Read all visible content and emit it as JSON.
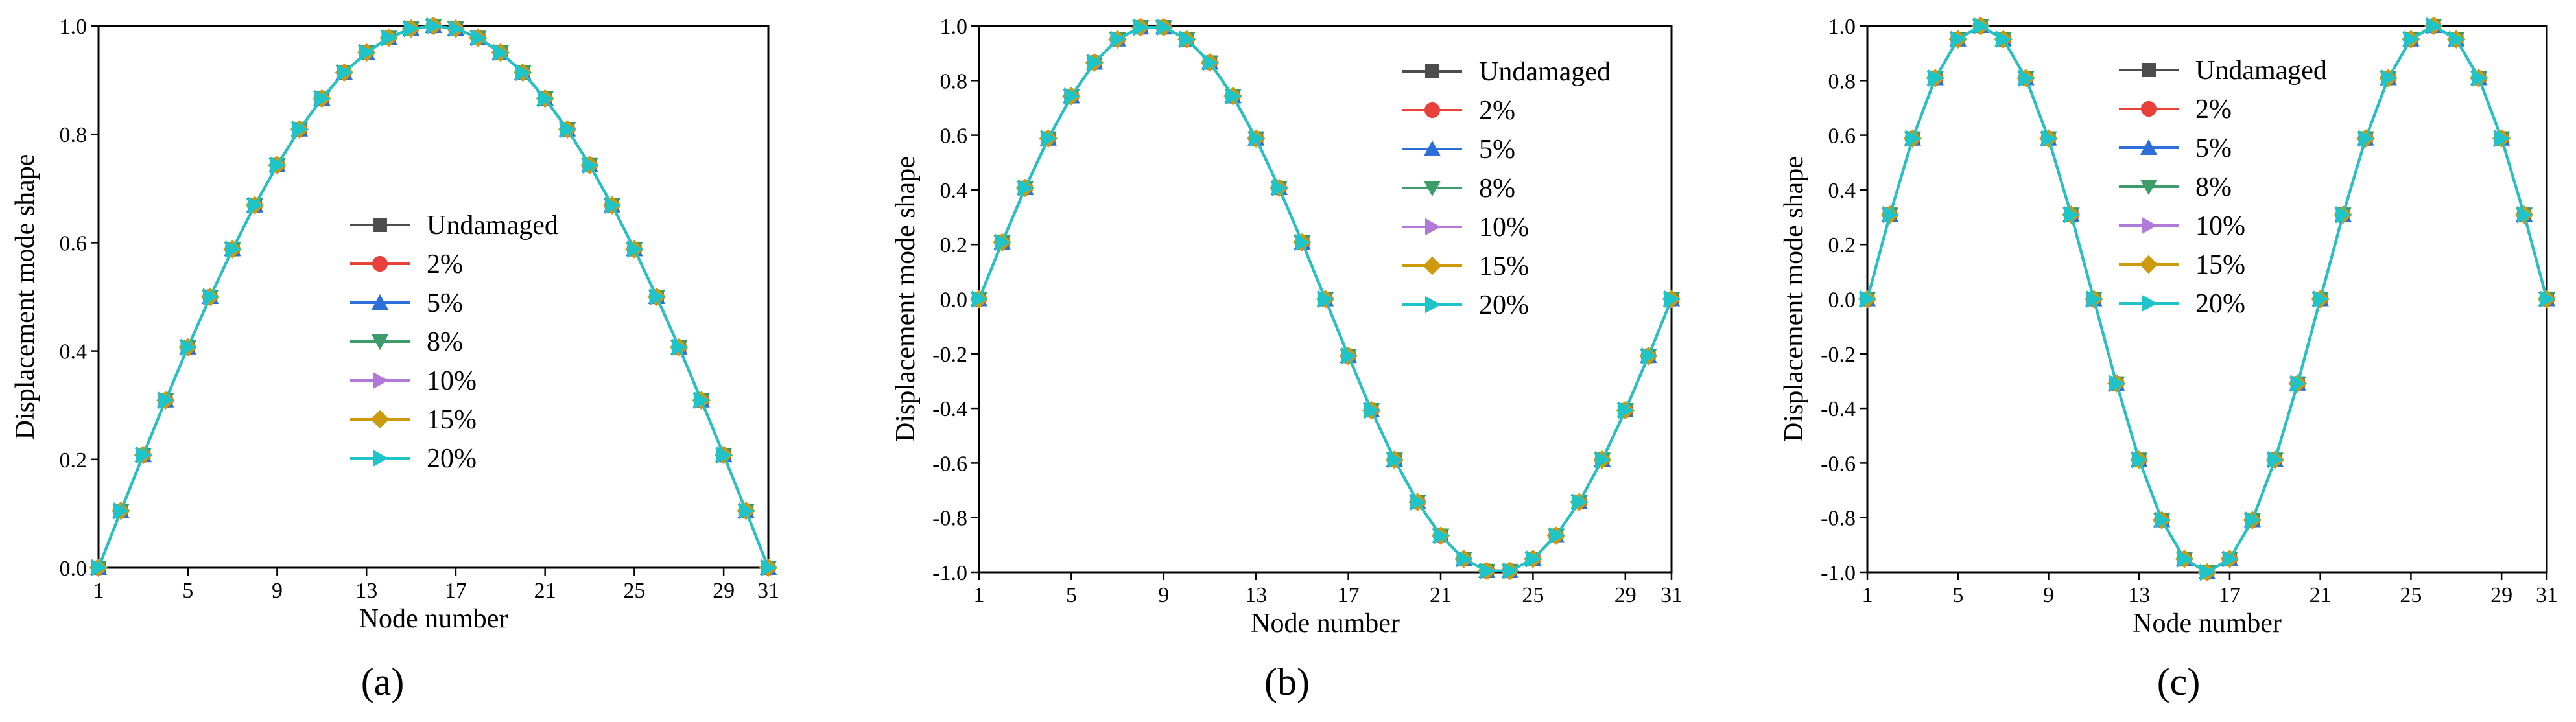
{
  "chart_data": [
    {
      "type": "line",
      "panel_label": "(a)",
      "xlabel": "Node number",
      "ylabel": "Displacement mode shape",
      "xlim": [
        1,
        31
      ],
      "ylim": [
        0.0,
        1.0
      ],
      "xticks": [
        1,
        5,
        9,
        13,
        17,
        21,
        25,
        29,
        31
      ],
      "yticks": [
        0.0,
        0.2,
        0.4,
        0.6,
        0.8,
        1.0
      ],
      "ytick_labels": [
        "0.0",
        "0.2",
        "0.4",
        "0.6",
        "0.8",
        "1.0"
      ],
      "legend_position": "center",
      "mode": 1,
      "x": [
        1,
        2,
        3,
        4,
        5,
        6,
        7,
        8,
        9,
        10,
        11,
        12,
        13,
        14,
        15,
        16,
        17,
        18,
        19,
        20,
        21,
        22,
        23,
        24,
        25,
        26,
        27,
        28,
        29,
        30,
        31
      ],
      "series": [
        {
          "name": "Undamaged",
          "values": [
            0,
            0.105,
            0.208,
            0.309,
            0.407,
            0.5,
            0.588,
            0.669,
            0.743,
            0.809,
            0.866,
            0.914,
            0.951,
            0.978,
            0.995,
            1.0,
            0.995,
            0.978,
            0.951,
            0.914,
            0.866,
            0.809,
            0.743,
            0.669,
            0.588,
            0.5,
            0.407,
            0.309,
            0.208,
            0.105,
            0
          ]
        },
        {
          "name": "2%",
          "values": [
            0,
            0.105,
            0.208,
            0.309,
            0.407,
            0.5,
            0.588,
            0.669,
            0.743,
            0.809,
            0.866,
            0.914,
            0.951,
            0.978,
            0.995,
            1.0,
            0.995,
            0.978,
            0.951,
            0.914,
            0.866,
            0.809,
            0.743,
            0.669,
            0.588,
            0.5,
            0.407,
            0.309,
            0.208,
            0.105,
            0
          ]
        },
        {
          "name": "5%",
          "values": [
            0,
            0.105,
            0.208,
            0.309,
            0.407,
            0.5,
            0.588,
            0.669,
            0.743,
            0.809,
            0.866,
            0.914,
            0.951,
            0.978,
            0.995,
            1.0,
            0.995,
            0.978,
            0.951,
            0.914,
            0.866,
            0.809,
            0.743,
            0.669,
            0.588,
            0.5,
            0.407,
            0.309,
            0.208,
            0.105,
            0
          ]
        },
        {
          "name": "8%",
          "values": [
            0,
            0.105,
            0.208,
            0.309,
            0.407,
            0.5,
            0.588,
            0.669,
            0.743,
            0.809,
            0.866,
            0.914,
            0.951,
            0.978,
            0.995,
            1.0,
            0.995,
            0.978,
            0.951,
            0.914,
            0.866,
            0.809,
            0.743,
            0.669,
            0.588,
            0.5,
            0.407,
            0.309,
            0.208,
            0.105,
            0
          ]
        },
        {
          "name": "10%",
          "values": [
            0,
            0.105,
            0.208,
            0.309,
            0.407,
            0.5,
            0.588,
            0.669,
            0.743,
            0.809,
            0.866,
            0.914,
            0.951,
            0.978,
            0.995,
            1.0,
            0.995,
            0.978,
            0.951,
            0.914,
            0.866,
            0.809,
            0.743,
            0.669,
            0.588,
            0.5,
            0.407,
            0.309,
            0.208,
            0.105,
            0
          ]
        },
        {
          "name": "15%",
          "values": [
            0,
            0.105,
            0.208,
            0.309,
            0.407,
            0.5,
            0.588,
            0.669,
            0.743,
            0.809,
            0.866,
            0.914,
            0.951,
            0.978,
            0.995,
            1.0,
            0.995,
            0.978,
            0.951,
            0.914,
            0.866,
            0.809,
            0.743,
            0.669,
            0.588,
            0.5,
            0.407,
            0.309,
            0.208,
            0.105,
            0
          ]
        },
        {
          "name": "20%",
          "values": [
            0,
            0.105,
            0.208,
            0.309,
            0.407,
            0.5,
            0.588,
            0.669,
            0.743,
            0.809,
            0.866,
            0.914,
            0.951,
            0.978,
            0.995,
            1.0,
            0.995,
            0.978,
            0.951,
            0.914,
            0.866,
            0.809,
            0.743,
            0.669,
            0.588,
            0.5,
            0.407,
            0.309,
            0.208,
            0.105,
            0
          ]
        }
      ]
    },
    {
      "type": "line",
      "panel_label": "(b)",
      "xlabel": "Node number",
      "ylabel": "Displacement mode shape",
      "xlim": [
        1,
        31
      ],
      "ylim": [
        -1.0,
        1.0
      ],
      "xticks": [
        1,
        5,
        9,
        13,
        17,
        21,
        25,
        29,
        31
      ],
      "yticks": [
        -1.0,
        -0.8,
        -0.6,
        -0.4,
        -0.2,
        0.0,
        0.2,
        0.4,
        0.6,
        0.8,
        1.0
      ],
      "ytick_labels": [
        "-1.0",
        "-0.8",
        "-0.6",
        "-0.4",
        "-0.2",
        "0.0",
        "0.2",
        "0.4",
        "0.6",
        "0.8",
        "1.0"
      ],
      "legend_position": "top-right",
      "mode": 2,
      "x": [
        1,
        2,
        3,
        4,
        5,
        6,
        7,
        8,
        9,
        10,
        11,
        12,
        13,
        14,
        15,
        16,
        17,
        18,
        19,
        20,
        21,
        22,
        23,
        24,
        25,
        26,
        27,
        28,
        29,
        30,
        31
      ],
      "series": [
        {
          "name": "Undamaged",
          "values": [
            0,
            0.208,
            0.407,
            0.588,
            0.743,
            0.866,
            0.951,
            0.995,
            0.995,
            0.951,
            0.866,
            0.743,
            0.588,
            0.407,
            0.208,
            0,
            -0.208,
            -0.407,
            -0.588,
            -0.743,
            -0.866,
            -0.951,
            -0.995,
            -0.995,
            -0.951,
            -0.866,
            -0.743,
            -0.588,
            -0.407,
            -0.208,
            0
          ]
        },
        {
          "name": "2%",
          "values": [
            0,
            0.208,
            0.407,
            0.588,
            0.743,
            0.866,
            0.951,
            0.995,
            0.995,
            0.951,
            0.866,
            0.743,
            0.588,
            0.407,
            0.208,
            0,
            -0.208,
            -0.407,
            -0.588,
            -0.743,
            -0.866,
            -0.951,
            -0.995,
            -0.995,
            -0.951,
            -0.866,
            -0.743,
            -0.588,
            -0.407,
            -0.208,
            0
          ]
        },
        {
          "name": "5%",
          "values": [
            0,
            0.208,
            0.407,
            0.588,
            0.743,
            0.866,
            0.951,
            0.995,
            0.995,
            0.951,
            0.866,
            0.743,
            0.588,
            0.407,
            0.208,
            0,
            -0.208,
            -0.407,
            -0.588,
            -0.743,
            -0.866,
            -0.951,
            -0.995,
            -0.995,
            -0.951,
            -0.866,
            -0.743,
            -0.588,
            -0.407,
            -0.208,
            0
          ]
        },
        {
          "name": "8%",
          "values": [
            0,
            0.208,
            0.407,
            0.588,
            0.743,
            0.866,
            0.951,
            0.995,
            0.995,
            0.951,
            0.866,
            0.743,
            0.588,
            0.407,
            0.208,
            0,
            -0.208,
            -0.407,
            -0.588,
            -0.743,
            -0.866,
            -0.951,
            -0.995,
            -0.995,
            -0.951,
            -0.866,
            -0.743,
            -0.588,
            -0.407,
            -0.208,
            0
          ]
        },
        {
          "name": "10%",
          "values": [
            0,
            0.208,
            0.407,
            0.588,
            0.743,
            0.866,
            0.951,
            0.995,
            0.995,
            0.951,
            0.866,
            0.743,
            0.588,
            0.407,
            0.208,
            0,
            -0.208,
            -0.407,
            -0.588,
            -0.743,
            -0.866,
            -0.951,
            -0.995,
            -0.995,
            -0.951,
            -0.866,
            -0.743,
            -0.588,
            -0.407,
            -0.208,
            0
          ]
        },
        {
          "name": "15%",
          "values": [
            0,
            0.208,
            0.407,
            0.588,
            0.743,
            0.866,
            0.951,
            0.995,
            0.995,
            0.951,
            0.866,
            0.743,
            0.588,
            0.407,
            0.208,
            0,
            -0.208,
            -0.407,
            -0.588,
            -0.743,
            -0.866,
            -0.951,
            -0.995,
            -0.995,
            -0.951,
            -0.866,
            -0.743,
            -0.588,
            -0.407,
            -0.208,
            0
          ]
        },
        {
          "name": "20%",
          "values": [
            0,
            0.208,
            0.407,
            0.588,
            0.743,
            0.866,
            0.951,
            0.995,
            0.995,
            0.951,
            0.866,
            0.743,
            0.588,
            0.407,
            0.208,
            0,
            -0.208,
            -0.407,
            -0.588,
            -0.743,
            -0.866,
            -0.951,
            -0.995,
            -0.995,
            -0.951,
            -0.866,
            -0.743,
            -0.588,
            -0.407,
            -0.208,
            0
          ]
        }
      ]
    },
    {
      "type": "line",
      "panel_label": "(c)",
      "xlabel": "Node number",
      "ylabel": "Displacement mode shape",
      "xlim": [
        1,
        31
      ],
      "ylim": [
        -1.0,
        1.0
      ],
      "xticks": [
        1,
        5,
        9,
        13,
        17,
        21,
        25,
        29,
        31
      ],
      "yticks": [
        -1.0,
        -0.8,
        -0.6,
        -0.4,
        -0.2,
        0.0,
        0.2,
        0.4,
        0.6,
        0.8,
        1.0
      ],
      "ytick_labels": [
        "-1.0",
        "-0.8",
        "-0.6",
        "-0.4",
        "-0.2",
        "0.0",
        "0.2",
        "0.4",
        "0.6",
        "0.8",
        "1.0"
      ],
      "legend_position": "top-center",
      "mode": 3,
      "x": [
        1,
        2,
        3,
        4,
        5,
        6,
        7,
        8,
        9,
        10,
        11,
        12,
        13,
        14,
        15,
        16,
        17,
        18,
        19,
        20,
        21,
        22,
        23,
        24,
        25,
        26,
        27,
        28,
        29,
        30,
        31
      ],
      "series": [
        {
          "name": "Undamaged",
          "values": [
            0,
            0.309,
            0.588,
            0.809,
            0.951,
            1.0,
            0.951,
            0.809,
            0.588,
            0.309,
            0,
            -0.309,
            -0.588,
            -0.809,
            -0.951,
            -1.0,
            -0.951,
            -0.809,
            -0.588,
            -0.309,
            0,
            0.309,
            0.588,
            0.809,
            0.951,
            1.0,
            0.951,
            0.809,
            0.588,
            0.309,
            0
          ]
        },
        {
          "name": "2%",
          "values": [
            0,
            0.309,
            0.588,
            0.809,
            0.951,
            1.0,
            0.951,
            0.809,
            0.588,
            0.309,
            0,
            -0.309,
            -0.588,
            -0.809,
            -0.951,
            -1.0,
            -0.951,
            -0.809,
            -0.588,
            -0.309,
            0,
            0.309,
            0.588,
            0.809,
            0.951,
            1.0,
            0.951,
            0.809,
            0.588,
            0.309,
            0
          ]
        },
        {
          "name": "5%",
          "values": [
            0,
            0.309,
            0.588,
            0.809,
            0.951,
            1.0,
            0.951,
            0.809,
            0.588,
            0.309,
            0,
            -0.309,
            -0.588,
            -0.809,
            -0.951,
            -1.0,
            -0.951,
            -0.809,
            -0.588,
            -0.309,
            0,
            0.309,
            0.588,
            0.809,
            0.951,
            1.0,
            0.951,
            0.809,
            0.588,
            0.309,
            0
          ]
        },
        {
          "name": "8%",
          "values": [
            0,
            0.309,
            0.588,
            0.809,
            0.951,
            1.0,
            0.951,
            0.809,
            0.588,
            0.309,
            0,
            -0.309,
            -0.588,
            -0.809,
            -0.951,
            -1.0,
            -0.951,
            -0.809,
            -0.588,
            -0.309,
            0,
            0.309,
            0.588,
            0.809,
            0.951,
            1.0,
            0.951,
            0.809,
            0.588,
            0.309,
            0
          ]
        },
        {
          "name": "10%",
          "values": [
            0,
            0.309,
            0.588,
            0.809,
            0.951,
            1.0,
            0.951,
            0.809,
            0.588,
            0.309,
            0,
            -0.309,
            -0.588,
            -0.809,
            -0.951,
            -1.0,
            -0.951,
            -0.809,
            -0.588,
            -0.309,
            0,
            0.309,
            0.588,
            0.809,
            0.951,
            1.0,
            0.951,
            0.809,
            0.588,
            0.309,
            0
          ]
        },
        {
          "name": "15%",
          "values": [
            0,
            0.309,
            0.588,
            0.809,
            0.951,
            1.0,
            0.951,
            0.809,
            0.588,
            0.309,
            0,
            -0.309,
            -0.588,
            -0.809,
            -0.951,
            -1.0,
            -0.951,
            -0.809,
            -0.588,
            -0.309,
            0,
            0.309,
            0.588,
            0.809,
            0.951,
            1.0,
            0.951,
            0.809,
            0.588,
            0.309,
            0
          ]
        },
        {
          "name": "20%",
          "values": [
            0,
            0.309,
            0.588,
            0.809,
            0.951,
            1.0,
            0.951,
            0.809,
            0.588,
            0.309,
            0,
            -0.309,
            -0.588,
            -0.809,
            -0.951,
            -1.0,
            -0.951,
            -0.809,
            -0.588,
            -0.309,
            0,
            0.309,
            0.588,
            0.809,
            0.951,
            1.0,
            0.951,
            0.809,
            0.588,
            0.309,
            0
          ]
        }
      ]
    }
  ],
  "series_styles": [
    {
      "name": "Undamaged",
      "color": "#4d4d4d",
      "marker": "square-icon"
    },
    {
      "name": "2%",
      "color": "#e8413c",
      "marker": "circle-icon"
    },
    {
      "name": "5%",
      "color": "#2d6fd8",
      "marker": "triangle-up-icon"
    },
    {
      "name": "8%",
      "color": "#3d9c6a",
      "marker": "triangle-down-icon"
    },
    {
      "name": "10%",
      "color": "#b27ad8",
      "marker": "triangle-right-icon"
    },
    {
      "name": "15%",
      "color": "#cc9a0a",
      "marker": "diamond-icon"
    },
    {
      "name": "20%",
      "color": "#1fc4c8",
      "marker": "triangle-right-icon"
    }
  ]
}
